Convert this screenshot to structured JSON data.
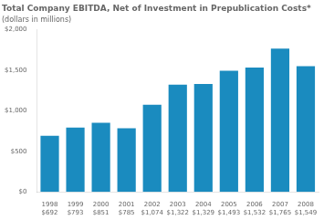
{
  "chart_data": {
    "type": "bar",
    "title": "Total Company EBITDA, Net of Investment in Prepublication Costs*",
    "subtitle": "(dollars in millions)",
    "categories": [
      "1998",
      "1999",
      "2000",
      "2001",
      "2002",
      "2003",
      "2004",
      "2005",
      "2006",
      "2007",
      "2008"
    ],
    "values": [
      692,
      793,
      851,
      785,
      1074,
      1322,
      1329,
      1493,
      1532,
      1765,
      1549
    ],
    "value_labels": [
      "$692",
      "$793",
      "$851",
      "$785",
      "$1,074",
      "$1,322",
      "$1,329",
      "$1,493",
      "$1,532",
      "$1,765",
      "$1,549"
    ],
    "data_labels": true,
    "color": "#1a8bbf",
    "ylim": [
      0,
      2000
    ],
    "yticks": [
      {
        "value": 0,
        "label": "$0"
      },
      {
        "value": 500,
        "label": "$500"
      },
      {
        "value": 1000,
        "label": "$1,000"
      },
      {
        "value": 1500,
        "label": "$1,500"
      },
      {
        "value": 2000,
        "label": "$2,000"
      }
    ],
    "grid": false
  }
}
